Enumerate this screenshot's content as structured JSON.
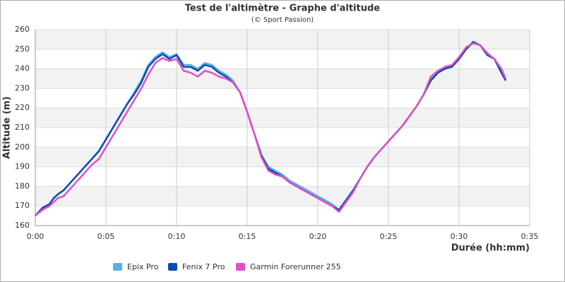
{
  "chart_data": {
    "type": "line",
    "title": "Test de l'altimètre - Graphe d'altitude",
    "subtitle": "(© Sport Passion)",
    "x_label": "Durée (hh:mm)",
    "y_label": "Altitude (m)",
    "x": [
      0,
      0.5,
      1,
      1.3,
      1.6,
      2,
      2.5,
      3,
      3.5,
      4,
      4.5,
      5,
      5.5,
      6,
      6.5,
      7,
      7.5,
      8,
      8.5,
      9,
      9.5,
      10,
      10.5,
      11,
      11.5,
      12,
      12.5,
      13,
      13.5,
      14,
      14.5,
      15,
      15.5,
      16,
      16.5,
      17,
      17.5,
      18,
      18.5,
      19,
      19.5,
      20,
      20.5,
      21,
      21.5,
      22,
      22.5,
      23,
      23.5,
      24,
      24.5,
      25,
      25.5,
      26,
      26.5,
      27,
      27.5,
      28,
      28.5,
      29,
      29.5,
      30,
      30.5,
      31,
      31.5,
      32,
      32.5,
      33,
      33.3
    ],
    "series": [
      {
        "name": "Epix Pro",
        "color": "#5aaee8",
        "values": [
          165,
          169,
          171,
          174,
          176,
          178,
          182,
          186,
          190,
          194,
          198,
          204,
          210,
          216,
          222,
          228,
          234,
          242,
          246,
          248.5,
          246,
          247.5,
          242,
          242,
          240,
          243,
          242,
          239,
          237,
          234,
          228,
          218,
          207,
          196,
          190,
          188,
          186,
          183,
          181,
          179,
          177,
          175,
          173,
          171,
          168,
          173,
          178,
          184,
          190,
          195,
          199,
          203,
          207,
          211,
          216,
          221,
          227,
          235,
          238,
          241,
          241,
          245,
          250,
          254,
          252,
          248,
          245,
          239,
          234.5
        ]
      },
      {
        "name": "Fenix 7 Pro",
        "color": "#0a4cb0",
        "values": [
          165,
          169,
          171,
          174,
          176,
          178,
          182,
          186,
          190,
          194,
          198,
          204,
          210,
          216,
          222,
          227,
          233,
          241,
          245,
          247.5,
          245,
          247,
          241,
          241,
          239,
          242,
          241,
          238,
          236,
          233,
          228,
          218,
          207,
          196,
          189,
          187,
          185,
          182,
          180,
          178,
          176,
          174,
          172,
          170,
          168,
          173,
          178,
          184,
          190,
          195,
          199,
          203,
          207,
          211,
          216,
          221,
          227,
          234,
          238,
          240,
          241,
          245,
          250,
          253.5,
          252,
          247,
          245,
          238,
          234
        ]
      },
      {
        "name": "Garmin Forerunner 255",
        "color": "#e050c0",
        "values": [
          165,
          168,
          170,
          172,
          174,
          175,
          179,
          183,
          187,
          191,
          194,
          200,
          206,
          212,
          218,
          224,
          230,
          237,
          243,
          245.5,
          244,
          245,
          239,
          238,
          236,
          239,
          238,
          236,
          235,
          233,
          228,
          218,
          207,
          195,
          188,
          186,
          185,
          182,
          180,
          178,
          176,
          174,
          172,
          170,
          167,
          172,
          177,
          184,
          190,
          195,
          199,
          203,
          207,
          211,
          216,
          221,
          227,
          236,
          239,
          241,
          242,
          246,
          251,
          253,
          252,
          248,
          245,
          240,
          235
        ]
      }
    ],
    "xlim": [
      0,
      35
    ],
    "xticks": [
      {
        "value": 0,
        "label": "0:00"
      },
      {
        "value": 5,
        "label": "0:05"
      },
      {
        "value": 10,
        "label": "0:10"
      },
      {
        "value": 15,
        "label": "0:15"
      },
      {
        "value": 20,
        "label": "0:20"
      },
      {
        "value": 25,
        "label": "0:25"
      },
      {
        "value": 30,
        "label": "0:30"
      },
      {
        "value": 35,
        "label": "0:35"
      }
    ],
    "ylim": [
      160,
      260
    ],
    "yticks": [
      160,
      170,
      180,
      190,
      200,
      210,
      220,
      230,
      240,
      250,
      260
    ],
    "grid": true,
    "legend": "bottom"
  }
}
